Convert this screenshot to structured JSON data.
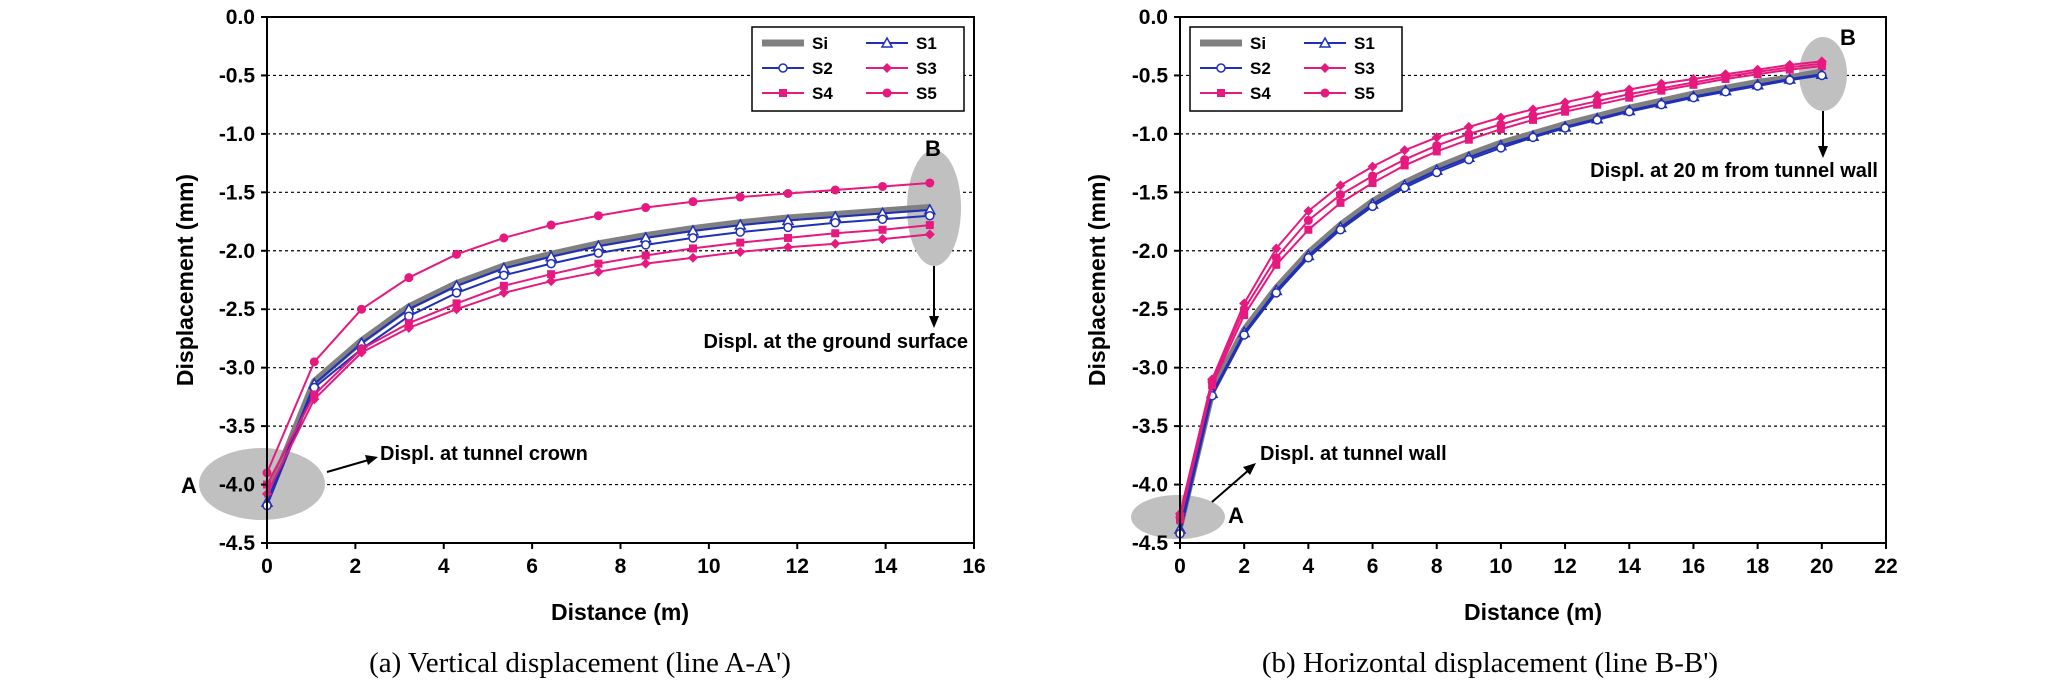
{
  "chart_data": [
    {
      "type": "line",
      "caption": "(a) Vertical displacement (line A-A')",
      "xlabel": "Distance (m)",
      "ylabel": "Displacement (mm)",
      "xlim": [
        0,
        16
      ],
      "ylim": [
        -4.5,
        0.0
      ],
      "xticks": [
        0,
        2,
        4,
        6,
        8,
        10,
        12,
        14,
        16
      ],
      "yticks": [
        0.0,
        -0.5,
        -1.0,
        -1.5,
        -2.0,
        -2.5,
        -3.0,
        -3.5,
        -4.0,
        -4.5
      ],
      "grid": "horizontal dashed",
      "legend_position": "top-right",
      "series": [
        {
          "name": "Si",
          "color": "#808080",
          "marker": "none",
          "x": [
            0,
            1.07,
            2.14,
            3.21,
            4.29,
            5.36,
            6.43,
            7.5,
            8.57,
            9.64,
            10.71,
            11.79,
            12.86,
            13.93,
            15
          ],
          "y": [
            -4.12,
            -3.12,
            -2.77,
            -2.48,
            -2.28,
            -2.13,
            -2.03,
            -1.94,
            -1.87,
            -1.81,
            -1.76,
            -1.72,
            -1.69,
            -1.66,
            -1.63
          ]
        },
        {
          "name": "S1",
          "color": "#1f2fb8",
          "marker": "triangle-open",
          "x": [
            0,
            1.07,
            2.14,
            3.21,
            4.29,
            5.36,
            6.43,
            7.5,
            8.57,
            9.64,
            10.71,
            11.79,
            12.86,
            13.93,
            15
          ],
          "y": [
            -4.15,
            -3.14,
            -2.79,
            -2.5,
            -2.3,
            -2.15,
            -2.05,
            -1.96,
            -1.89,
            -1.83,
            -1.78,
            -1.74,
            -1.71,
            -1.68,
            -1.65
          ]
        },
        {
          "name": "S2",
          "color": "#1f2fb8",
          "marker": "circle-open",
          "x": [
            0,
            1.07,
            2.14,
            3.21,
            4.29,
            5.36,
            6.43,
            7.5,
            8.57,
            9.64,
            10.71,
            11.79,
            12.86,
            13.93,
            15
          ],
          "y": [
            -4.18,
            -3.17,
            -2.84,
            -2.56,
            -2.36,
            -2.21,
            -2.11,
            -2.02,
            -1.95,
            -1.89,
            -1.84,
            -1.8,
            -1.76,
            -1.73,
            -1.7
          ]
        },
        {
          "name": "S3",
          "color": "#e6197f",
          "marker": "diamond",
          "x": [
            0,
            1.07,
            2.14,
            3.21,
            4.29,
            5.36,
            6.43,
            7.5,
            8.57,
            9.64,
            10.71,
            11.79,
            12.86,
            13.93,
            15
          ],
          "y": [
            -4.08,
            -3.27,
            -2.87,
            -2.66,
            -2.5,
            -2.36,
            -2.26,
            -2.18,
            -2.11,
            -2.06,
            -2.01,
            -1.97,
            -1.94,
            -1.9,
            -1.86
          ]
        },
        {
          "name": "S4",
          "color": "#e6197f",
          "marker": "square",
          "x": [
            0,
            1.07,
            2.14,
            3.21,
            4.29,
            5.36,
            6.43,
            7.5,
            8.57,
            9.64,
            10.71,
            11.79,
            12.86,
            13.93,
            15
          ],
          "y": [
            -4.0,
            -3.23,
            -2.84,
            -2.62,
            -2.45,
            -2.3,
            -2.2,
            -2.11,
            -2.04,
            -1.98,
            -1.93,
            -1.89,
            -1.85,
            -1.82,
            -1.78
          ]
        },
        {
          "name": "S5",
          "color": "#e6197f",
          "marker": "circle",
          "x": [
            0,
            1.07,
            2.14,
            3.21,
            4.29,
            5.36,
            6.43,
            7.5,
            8.57,
            9.64,
            10.71,
            11.79,
            12.86,
            13.93,
            15
          ],
          "y": [
            -3.9,
            -2.95,
            -2.5,
            -2.23,
            -2.03,
            -1.89,
            -1.78,
            -1.7,
            -1.63,
            -1.58,
            -1.54,
            -1.51,
            -1.48,
            -1.45,
            -1.42
          ]
        }
      ],
      "annotations": [
        {
          "label": "A",
          "text": "Displ. at tunnel crown"
        },
        {
          "label": "B",
          "text": "Displ. at the ground surface"
        }
      ]
    },
    {
      "type": "line",
      "caption": "(b) Horizontal displacement (line B-B')",
      "xlabel": "Distance (m)",
      "ylabel": "Displacement (mm)",
      "xlim": [
        0,
        22
      ],
      "ylim": [
        -4.5,
        0.0
      ],
      "xticks": [
        0,
        2,
        4,
        6,
        8,
        10,
        12,
        14,
        16,
        18,
        20,
        22
      ],
      "yticks": [
        0.0,
        -0.5,
        -1.0,
        -1.5,
        -2.0,
        -2.5,
        -3.0,
        -3.5,
        -4.0,
        -4.5
      ],
      "grid": "horizontal dashed",
      "legend_position": "top-left",
      "series": [
        {
          "name": "Si",
          "color": "#808080",
          "marker": "none",
          "x": [
            0,
            1,
            2,
            3,
            4,
            5,
            6,
            7,
            8,
            9,
            10,
            11,
            12,
            13,
            14,
            15,
            16,
            17,
            18,
            19,
            20
          ],
          "y": [
            -4.35,
            -3.2,
            -2.68,
            -2.32,
            -2.02,
            -1.78,
            -1.58,
            -1.42,
            -1.29,
            -1.18,
            -1.08,
            -1.0,
            -0.92,
            -0.85,
            -0.78,
            -0.72,
            -0.66,
            -0.61,
            -0.56,
            -0.52,
            -0.47
          ]
        },
        {
          "name": "S1",
          "color": "#1f2fb8",
          "marker": "triangle-open",
          "x": [
            0,
            1,
            2,
            3,
            4,
            5,
            6,
            7,
            8,
            9,
            10,
            11,
            12,
            13,
            14,
            15,
            16,
            17,
            18,
            19,
            20
          ],
          "y": [
            -4.38,
            -3.22,
            -2.7,
            -2.34,
            -2.04,
            -1.8,
            -1.6,
            -1.44,
            -1.31,
            -1.2,
            -1.1,
            -1.02,
            -0.94,
            -0.87,
            -0.8,
            -0.74,
            -0.68,
            -0.63,
            -0.58,
            -0.53,
            -0.49
          ]
        },
        {
          "name": "S2",
          "color": "#1f2fb8",
          "marker": "circle-open",
          "x": [
            0,
            1,
            2,
            3,
            4,
            5,
            6,
            7,
            8,
            9,
            10,
            11,
            12,
            13,
            14,
            15,
            16,
            17,
            18,
            19,
            20
          ],
          "y": [
            -4.42,
            -3.24,
            -2.72,
            -2.36,
            -2.06,
            -1.82,
            -1.62,
            -1.46,
            -1.33,
            -1.22,
            -1.12,
            -1.03,
            -0.95,
            -0.88,
            -0.81,
            -0.75,
            -0.69,
            -0.64,
            -0.59,
            -0.54,
            -0.5
          ]
        },
        {
          "name": "S3",
          "color": "#e6197f",
          "marker": "diamond",
          "x": [
            0,
            1,
            2,
            3,
            4,
            5,
            6,
            7,
            8,
            9,
            10,
            11,
            12,
            13,
            14,
            15,
            16,
            17,
            18,
            19,
            20
          ],
          "y": [
            -4.25,
            -3.1,
            -2.45,
            -1.98,
            -1.66,
            -1.44,
            -1.28,
            -1.14,
            -1.03,
            -0.94,
            -0.86,
            -0.79,
            -0.73,
            -0.67,
            -0.62,
            -0.57,
            -0.53,
            -0.49,
            -0.45,
            -0.41,
            -0.38
          ]
        },
        {
          "name": "S4",
          "color": "#e6197f",
          "marker": "square",
          "x": [
            0,
            1,
            2,
            3,
            4,
            5,
            6,
            7,
            8,
            9,
            10,
            11,
            12,
            13,
            14,
            15,
            16,
            17,
            18,
            19,
            20
          ],
          "y": [
            -4.3,
            -3.15,
            -2.55,
            -2.12,
            -1.82,
            -1.59,
            -1.42,
            -1.27,
            -1.15,
            -1.05,
            -0.96,
            -0.88,
            -0.81,
            -0.75,
            -0.69,
            -0.63,
            -0.58,
            -0.53,
            -0.49,
            -0.45,
            -0.42
          ]
        },
        {
          "name": "S5",
          "color": "#e6197f",
          "marker": "circle",
          "x": [
            0,
            1,
            2,
            3,
            4,
            5,
            6,
            7,
            8,
            9,
            10,
            11,
            12,
            13,
            14,
            15,
            16,
            17,
            18,
            19,
            20
          ],
          "y": [
            -4.28,
            -3.12,
            -2.5,
            -2.06,
            -1.74,
            -1.52,
            -1.36,
            -1.22,
            -1.1,
            -1.0,
            -0.92,
            -0.84,
            -0.78,
            -0.72,
            -0.66,
            -0.61,
            -0.56,
            -0.51,
            -0.47,
            -0.43,
            -0.4
          ]
        }
      ],
      "annotations": [
        {
          "label": "A",
          "text": "Displ. at tunnel wall"
        },
        {
          "label": "B",
          "text": "Displ. at 20 m from tunnel wall"
        }
      ]
    }
  ]
}
